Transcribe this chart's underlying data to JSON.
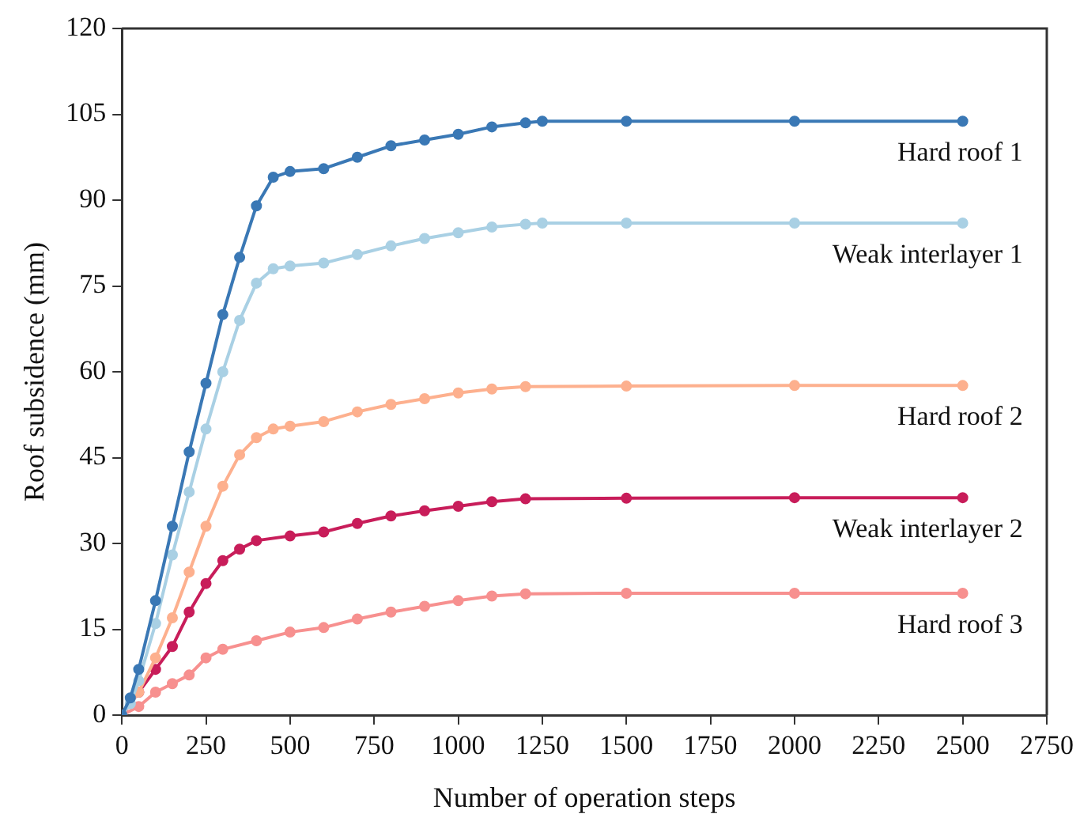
{
  "chart_data": {
    "type": "line",
    "xlabel": "Number of operation steps",
    "ylabel": "Roof subsidence (mm)",
    "xlim": [
      0,
      2750
    ],
    "xticks": [
      0,
      250,
      500,
      750,
      1000,
      1250,
      1500,
      1750,
      2000,
      2250,
      2500,
      2750
    ],
    "ylim": [
      0,
      120
    ],
    "yticks": [
      0,
      15,
      30,
      45,
      60,
      75,
      90,
      105,
      120
    ],
    "grid": false,
    "legend": false,
    "marker": "circle",
    "series": [
      {
        "name": "Hard roof 1",
        "color": "#3a78b5",
        "x": [
          0,
          25,
          50,
          100,
          150,
          200,
          250,
          300,
          350,
          400,
          450,
          500,
          600,
          700,
          800,
          900,
          1000,
          1100,
          1200,
          1250,
          1500,
          2000,
          2500
        ],
        "values": [
          0,
          3,
          8,
          20,
          33,
          46,
          58,
          70,
          80,
          89,
          94,
          95,
          95.5,
          97.5,
          99.5,
          100.5,
          101.5,
          102.8,
          103.5,
          103.8,
          103.8,
          103.8,
          103.8
        ]
      },
      {
        "name": "Weak interlayer 1",
        "color": "#a9d0e4",
        "x": [
          0,
          25,
          50,
          100,
          150,
          200,
          250,
          300,
          350,
          400,
          450,
          500,
          600,
          700,
          800,
          900,
          1000,
          1100,
          1200,
          1250,
          1500,
          2000,
          2500
        ],
        "values": [
          0,
          2,
          6,
          16,
          28,
          39,
          50,
          60,
          69,
          75.5,
          78,
          78.5,
          79,
          80.5,
          82,
          83.3,
          84.3,
          85.3,
          85.8,
          86,
          86,
          86,
          86
        ]
      },
      {
        "name": "Hard roof 2",
        "color": "#fdb08e",
        "x": [
          0,
          50,
          100,
          150,
          200,
          250,
          300,
          350,
          400,
          450,
          500,
          600,
          700,
          800,
          900,
          1000,
          1100,
          1200,
          1500,
          2000,
          2500
        ],
        "values": [
          0,
          4,
          10,
          17,
          25,
          33,
          40,
          45.5,
          48.5,
          50,
          50.5,
          51.3,
          53,
          54.3,
          55.3,
          56.3,
          57,
          57.4,
          57.5,
          57.6,
          57.6
        ]
      },
      {
        "name": "Weak interlayer 2",
        "color": "#c81d5a",
        "x": [
          0,
          50,
          100,
          150,
          200,
          250,
          300,
          350,
          400,
          500,
          600,
          700,
          800,
          900,
          1000,
          1100,
          1200,
          1500,
          2000,
          2500
        ],
        "values": [
          0,
          4,
          8,
          12,
          18,
          23,
          27,
          29,
          30.5,
          31.3,
          32,
          33.5,
          34.8,
          35.7,
          36.5,
          37.3,
          37.8,
          37.9,
          38,
          38
        ]
      },
      {
        "name": "Hard roof 3",
        "color": "#f7908f",
        "x": [
          0,
          50,
          100,
          150,
          200,
          250,
          300,
          400,
          500,
          600,
          700,
          800,
          900,
          1000,
          1100,
          1200,
          1500,
          2000,
          2500
        ],
        "values": [
          0,
          1.5,
          4,
          5.5,
          7,
          10,
          11.5,
          13,
          14.5,
          15.3,
          16.8,
          18,
          19,
          20,
          20.8,
          21.2,
          21.3,
          21.3,
          21.3
        ]
      }
    ]
  }
}
